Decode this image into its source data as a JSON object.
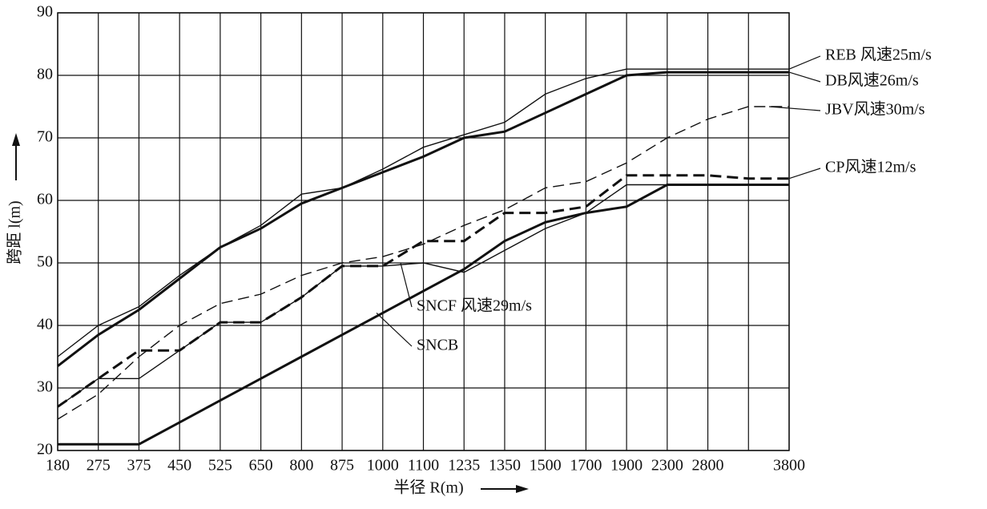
{
  "chart_data": {
    "type": "line",
    "x_label": "半径 R(m)",
    "y_label": "跨距 l(m)",
    "categories": [
      "180",
      "275",
      "375",
      "450",
      "525",
      "650",
      "800",
      "875",
      "1000",
      "1100",
      "1235",
      "1350",
      "1500",
      "1700",
      "1900",
      "2300",
      "2800",
      null,
      "3800"
    ],
    "ylim": [
      20,
      90
    ],
    "yticks": [
      20,
      30,
      40,
      50,
      60,
      70,
      80,
      90
    ],
    "grid": true,
    "series": [
      {
        "name": "REB 风速25m/s",
        "color": "#111111",
        "line_style": "solid",
        "weight": "thin",
        "values": [
          35,
          40,
          43,
          48,
          52.5,
          56,
          61,
          62,
          65,
          68.5,
          70.5,
          72.5,
          77,
          79.5,
          81,
          81,
          81,
          81,
          81
        ]
      },
      {
        "name": "DB风速26m/s",
        "color": "#111111",
        "line_style": "solid",
        "weight": "thick",
        "values": [
          33.5,
          38.5,
          42.5,
          47.5,
          52.5,
          55.5,
          59.5,
          62,
          64.5,
          67,
          70,
          71,
          74,
          77,
          80,
          80.5,
          80.5,
          80.5,
          80.5
        ]
      },
      {
        "name": "JBV风速30m/s",
        "color": "#111111",
        "line_style": "dashed",
        "weight": "thin",
        "values": [
          25,
          29,
          35,
          40,
          43.5,
          45,
          48,
          50,
          51,
          53,
          56,
          58.5,
          62,
          63,
          66,
          70,
          73,
          75,
          75
        ]
      },
      {
        "name": "CP风速12m/s",
        "color": "#111111",
        "line_style": "dashed",
        "weight": "thick",
        "values": [
          27,
          31.5,
          36,
          36,
          40.5,
          40.5,
          44.5,
          49.5,
          49.5,
          53.5,
          53.5,
          58,
          58,
          59,
          64,
          64,
          64,
          63.5,
          63.5
        ]
      },
      {
        "name": "SNCF  风速29m/s",
        "color": "#111111",
        "line_style": "solid",
        "weight": "thin",
        "values": [
          27,
          31.5,
          31.5,
          36,
          40.5,
          40.5,
          44.5,
          49.5,
          49.5,
          50,
          48.5,
          52,
          55.5,
          58,
          62.5,
          62.5,
          62.5,
          62.5,
          62.5
        ]
      },
      {
        "name": "SNCB",
        "color": "#111111",
        "line_style": "solid",
        "weight": "thick",
        "values": [
          21,
          21,
          21,
          24.5,
          28,
          31.5,
          35,
          38.5,
          42,
          45.5,
          49,
          53.5,
          56.5,
          58,
          59,
          62.5,
          62.5,
          62.5,
          62.5
        ]
      }
    ]
  }
}
